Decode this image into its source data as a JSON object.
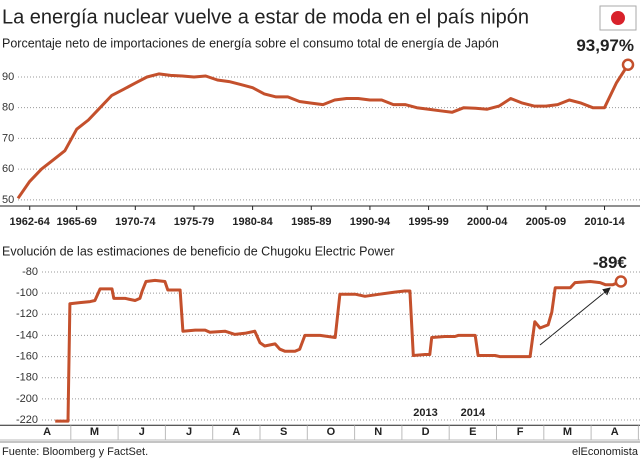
{
  "title": "La energía nuclear vuelve a estar de moda en el país nipón",
  "chart_data": [
    {
      "type": "line",
      "subtitle": "Porcentaje neto de importaciones de energía sobre el consumo total de energía de Japón",
      "x": [
        1962,
        1963,
        1964,
        1965,
        1966,
        1967,
        1968,
        1969,
        1970,
        1971,
        1972,
        1973,
        1974,
        1975,
        1976,
        1977,
        1978,
        1979,
        1980,
        1981,
        1982,
        1983,
        1984,
        1985,
        1986,
        1987,
        1988,
        1989,
        1990,
        1991,
        1992,
        1993,
        1994,
        1995,
        1996,
        1997,
        1998,
        1999,
        2000,
        2001,
        2002,
        2003,
        2004,
        2005,
        2006,
        2007,
        2008,
        2009,
        2010,
        2011,
        2012,
        2013,
        2014
      ],
      "values": [
        50.5,
        56,
        60,
        63,
        66,
        73,
        76,
        80,
        84,
        86,
        88,
        90,
        91,
        90.5,
        90.3,
        90,
        90.3,
        89,
        88.5,
        87.5,
        86.5,
        84.5,
        83.5,
        83.5,
        82,
        81.5,
        81,
        82.5,
        83,
        83,
        82.5,
        82.5,
        81,
        81,
        80,
        79.5,
        79,
        78.5,
        80,
        79.8,
        79.5,
        80.5,
        83,
        81.5,
        80.5,
        80.5,
        81,
        82.5,
        81.5,
        80,
        80,
        88,
        93.97
      ],
      "annotation": "93,97%",
      "color": "#c4502c",
      "xlim": [
        1962,
        2014
      ],
      "xticks": [
        {
          "value": 1963,
          "label": "1962-64"
        },
        {
          "value": 1967,
          "label": "1965-69"
        },
        {
          "value": 1972,
          "label": "1970-74"
        },
        {
          "value": 1977,
          "label": "1975-79"
        },
        {
          "value": 1982,
          "label": "1980-84"
        },
        {
          "value": 1987,
          "label": "1985-89"
        },
        {
          "value": 1992,
          "label": "1990-94"
        },
        {
          "value": 1997,
          "label": "1995-99"
        },
        {
          "value": 2002,
          "label": "2000-04"
        },
        {
          "value": 2007,
          "label": "2005-09"
        },
        {
          "value": 2012,
          "label": "2010-14"
        }
      ],
      "ylim": [
        48,
        95
      ],
      "yticks": [
        50,
        60,
        70,
        80,
        90
      ],
      "grid": true
    },
    {
      "type": "line",
      "subtitle": "Evolución de las estimaciones de beneficio de Chugoku Electric Power",
      "x": [
        0.67,
        0.94,
        0.98,
        1.19,
        1.41,
        1.51,
        1.62,
        1.87,
        1.91,
        2.15,
        2.36,
        2.46,
        2.51,
        2.59,
        2.78,
        2.99,
        3.05,
        3.31,
        3.37,
        3.63,
        3.84,
        3.94,
        4.26,
        4.47,
        4.68,
        4.89,
        5.0,
        5.1,
        5.32,
        5.42,
        5.53,
        5.74,
        5.84,
        5.95,
        6.27,
        6.59,
        6.69,
        7.01,
        7.22,
        7.53,
        7.85,
        8.06,
        8.17,
        8.24,
        8.49,
        8.59,
        8.63,
        8.91,
        9.12,
        9.19,
        9.55,
        9.61,
        9.97,
        10.07,
        10.71,
        10.81,
        10.92,
        11.09,
        11.17,
        11.24,
        11.56,
        11.66,
        11.98,
        12.19,
        12.3,
        12.46,
        12.63
      ],
      "values": [
        -221,
        -221,
        -110,
        -109,
        -108,
        -107,
        -96,
        -96,
        -105,
        -105,
        -107,
        -105,
        -98,
        -89,
        -88,
        -89,
        -97,
        -97,
        -136,
        -135,
        -135,
        -137,
        -136,
        -139,
        -138,
        -136,
        -147,
        -150,
        -148,
        -153,
        -155,
        -155,
        -153,
        -140,
        -140,
        -142,
        -101,
        -101,
        -103,
        -101,
        -99,
        -98,
        -98,
        -159,
        -158,
        -158,
        -142,
        -141,
        -141,
        -140,
        -140,
        -159,
        -159,
        -160,
        -160,
        -127,
        -133,
        -130,
        -118,
        -95,
        -95,
        -90,
        -89,
        -90,
        -92,
        -92,
        -89
      ],
      "annotation": "-89€",
      "color": "#c4502c",
      "xlim": [
        0,
        13
      ],
      "xticks": [
        {
          "value": 0.5,
          "label": "A"
        },
        {
          "value": 1.5,
          "label": "M"
        },
        {
          "value": 2.5,
          "label": "J"
        },
        {
          "value": 3.5,
          "label": "J"
        },
        {
          "value": 4.5,
          "label": "A"
        },
        {
          "value": 5.5,
          "label": "S"
        },
        {
          "value": 6.5,
          "label": "O"
        },
        {
          "value": 7.5,
          "label": "N"
        },
        {
          "value": 8.5,
          "label": "D"
        },
        {
          "value": 9.5,
          "label": "E"
        },
        {
          "value": 10.5,
          "label": "F"
        },
        {
          "value": 11.5,
          "label": "M"
        },
        {
          "value": 12.5,
          "label": "A"
        }
      ],
      "year_labels": [
        {
          "value": 8.5,
          "label": "2013"
        },
        {
          "value": 9.5,
          "label": "2014"
        }
      ],
      "ylim": [
        -225,
        -75
      ],
      "yticks": [
        -80,
        -100,
        -120,
        -140,
        -160,
        -180,
        -200,
        -220
      ],
      "grid": true
    }
  ],
  "source": "Fuente: Bloomberg y FactSet.",
  "brand": "elEconomista"
}
